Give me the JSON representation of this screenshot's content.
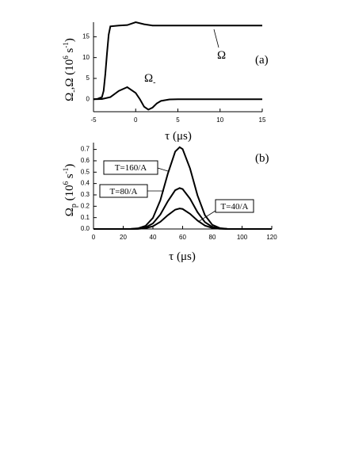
{
  "chart_data": [
    {
      "type": "line",
      "xlabel": "τ (μs)",
      "ylabel": [
        "Ω",
        "-",
        ",Ω (10",
        "6",
        " s",
        "-1",
        ")"
      ],
      "panel": "(a)",
      "annotations": [
        [
          "Ω"
        ],
        [
          "Ω",
          "-"
        ]
      ],
      "xlim": [
        -5,
        15
      ],
      "xticks": [
        -5,
        0,
        5,
        10,
        15
      ],
      "ylim": [
        -3,
        18.5
      ],
      "yticks": [
        0,
        5,
        10,
        15
      ],
      "series": [
        {
          "color": "#000000",
          "x": [
            -5,
            -4.5,
            -4,
            -3.8,
            -3.6,
            -3.4,
            -3.2,
            -3,
            -2,
            -1,
            0,
            1,
            2,
            3,
            5,
            10,
            15
          ],
          "values": [
            0,
            0.1,
            0.5,
            2,
            6,
            11,
            15.5,
            17.5,
            17.7,
            17.8,
            18.5,
            18.0,
            17.7,
            17.7,
            17.7,
            17.7,
            17.7
          ]
        },
        {
          "color": "#000000",
          "x": [
            -5,
            -4,
            -3,
            -2,
            -1,
            0,
            0.5,
            1,
            1.5,
            2,
            2.5,
            3,
            4,
            5,
            10,
            15
          ],
          "values": [
            0,
            0.05,
            0.5,
            2,
            2.9,
            1.5,
            0,
            -1.8,
            -2.5,
            -2,
            -1,
            -0.4,
            -0.05,
            0,
            0,
            0
          ]
        }
      ]
    },
    {
      "type": "line",
      "xlabel": "τ (μs)",
      "ylabel": [
        "Ω",
        "p",
        " (10",
        "6",
        " s",
        "-1",
        ")"
      ],
      "panel": "(b)",
      "annotations": [
        "T=160/A",
        "T=80/A",
        "T=40/A"
      ],
      "xlim": [
        0,
        120
      ],
      "xticks": [
        0,
        20,
        40,
        60,
        80,
        100,
        120
      ],
      "ylim": [
        0,
        0.76
      ],
      "yticks": [
        {
          "value": 0,
          "label": "0.0"
        },
        0.1,
        0.2,
        0.3,
        0.4,
        0.5,
        0.6,
        0.7
      ],
      "series": [
        {
          "color": "#000000",
          "x": [
            0,
            10,
            20,
            25,
            30,
            35,
            40,
            45,
            50,
            55,
            58,
            60,
            65,
            70,
            75,
            80,
            85,
            90,
            95,
            100,
            110,
            120
          ],
          "values": [
            0,
            0,
            0,
            0.001,
            0.006,
            0.027,
            0.097,
            0.253,
            0.485,
            0.681,
            0.72,
            0.703,
            0.532,
            0.296,
            0.121,
            0.036,
            0.008,
            0.001,
            0,
            0,
            0,
            0
          ]
        },
        {
          "color": "#000000",
          "x": [
            0,
            10,
            20,
            25,
            30,
            35,
            40,
            45,
            50,
            55,
            58,
            60,
            65,
            70,
            75,
            80,
            85,
            90,
            95,
            100,
            110,
            120
          ],
          "values": [
            0,
            0,
            0,
            0,
            0.003,
            0.014,
            0.049,
            0.127,
            0.243,
            0.341,
            0.36,
            0.351,
            0.266,
            0.148,
            0.06,
            0.018,
            0.004,
            0.001,
            0,
            0,
            0,
            0
          ]
        },
        {
          "color": "#000000",
          "x": [
            0,
            10,
            20,
            25,
            30,
            35,
            40,
            45,
            50,
            55,
            58,
            60,
            65,
            70,
            75,
            80,
            85,
            90,
            95,
            100,
            110,
            120
          ],
          "values": [
            0,
            0,
            0,
            0,
            0.001,
            0.007,
            0.024,
            0.063,
            0.121,
            0.17,
            0.18,
            0.176,
            0.133,
            0.074,
            0.03,
            0.009,
            0.002,
            0,
            0,
            0,
            0,
            0
          ]
        }
      ]
    }
  ]
}
